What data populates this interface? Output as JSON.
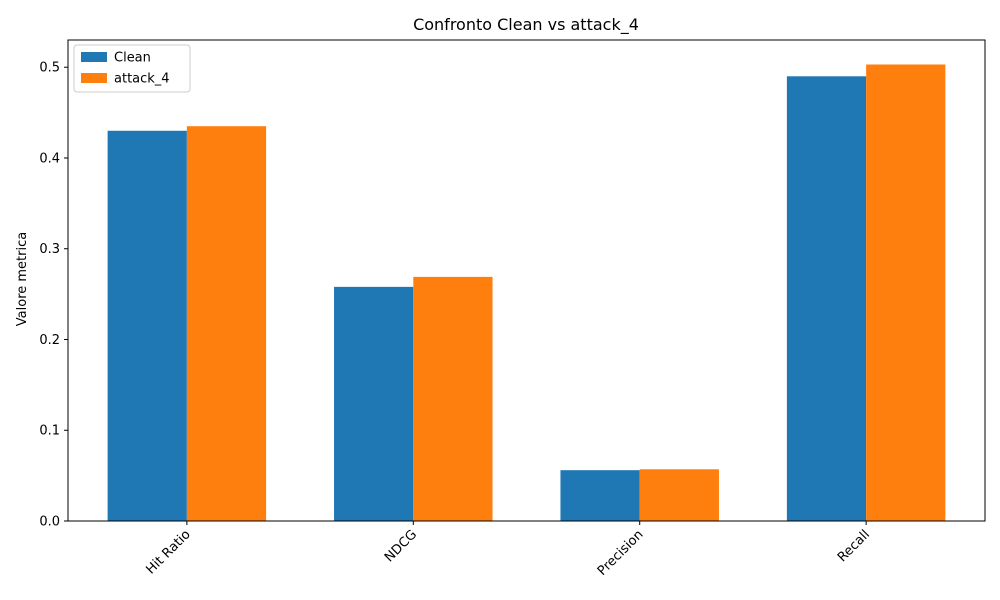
{
  "chart_data": {
    "type": "bar",
    "title": "Confronto Clean vs attack_4",
    "xlabel": "",
    "ylabel": "Valore metrica",
    "categories": [
      "Hit Ratio",
      "NDCG",
      "Precision",
      "Recall"
    ],
    "series": [
      {
        "name": "Clean",
        "values": [
          0.43,
          0.258,
          0.056,
          0.49
        ],
        "color": "#1f77b4"
      },
      {
        "name": "attack_4",
        "values": [
          0.435,
          0.269,
          0.057,
          0.503
        ],
        "color": "#ff7f0e"
      }
    ],
    "ylim": [
      0,
      0.53
    ],
    "yticks": [
      "0.0",
      "0.1",
      "0.2",
      "0.3",
      "0.4",
      "0.5"
    ],
    "grid": false,
    "legend_position": "top-left"
  }
}
